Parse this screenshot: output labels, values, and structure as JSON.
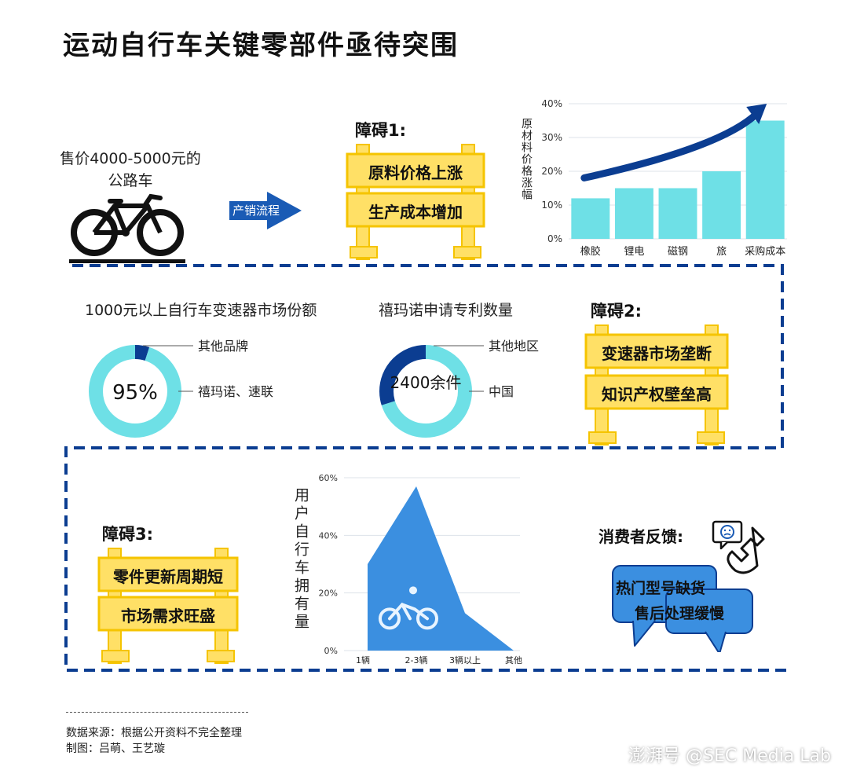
{
  "title": "运动自行车关键零部件亟待突围",
  "bike": {
    "caption_line1": "售价4000-5000元的",
    "caption_line2": "公路车",
    "icon": "bicycle-icon"
  },
  "arrow_label": "产销流程",
  "obstacles": [
    {
      "title": "障碍1:",
      "items": [
        "原料价格上涨",
        "生产成本增加"
      ]
    },
    {
      "title": "障碍2:",
      "items": [
        "变速器市场垄断",
        "知识产权壁垒高"
      ]
    },
    {
      "title": "障碍3:",
      "items": [
        "零件更新周期短",
        "市场需求旺盛"
      ]
    }
  ],
  "colors": {
    "dark_blue": "#0b3d91",
    "light_cyan": "#6ee0e6",
    "mid_blue": "#3b8fe0",
    "barrier_yellow": "#ffe066",
    "barrier_edge": "#f5c400"
  },
  "chart_data": [
    {
      "type": "bar",
      "ylabel": "原材料价格涨幅",
      "categories": [
        "橡胶",
        "锂电",
        "磁钢",
        "旅",
        "采购成本"
      ],
      "values": [
        12,
        15,
        15,
        20,
        35
      ],
      "yticks": [
        "40%",
        "30%",
        "20%",
        "10%",
        "0%"
      ],
      "ylim": [
        0,
        40
      ],
      "trend_arrow": true
    },
    {
      "type": "pie",
      "title": "1000元以上自行车变速器市场份额",
      "center_label": "95%",
      "slices": [
        {
          "label": "其他品牌",
          "value": 5
        },
        {
          "label": "禧玛诺、速联",
          "value": 95
        }
      ]
    },
    {
      "type": "pie",
      "title": "禧玛诺申请专利数量",
      "center_label": "2400余件",
      "slices": [
        {
          "label": "其他地区",
          "value": 70
        },
        {
          "label": "中国",
          "value": 30
        }
      ]
    },
    {
      "type": "area",
      "ylabel": "用户自行车拥有量",
      "categories": [
        "1辆",
        "2-3辆",
        "3辆以上",
        "其他"
      ],
      "values": [
        30,
        57,
        13,
        0
      ],
      "yticks": [
        "60%",
        "40%",
        "20%",
        "0%"
      ],
      "ylim": [
        0,
        60
      ],
      "icon": "cyclist-icon"
    }
  ],
  "feedback": {
    "title": "消费者反馈:",
    "bubbles": [
      "热门型号缺货",
      "售后处理缓慢"
    ],
    "icons": [
      "sad-face-chat-icon",
      "phone-icon"
    ]
  },
  "footer": {
    "source": "数据来源：根据公开资料不完全整理",
    "credit": "制图：吕萌、王艺璇"
  },
  "watermark": "澎湃号 @SEC Media Lab"
}
